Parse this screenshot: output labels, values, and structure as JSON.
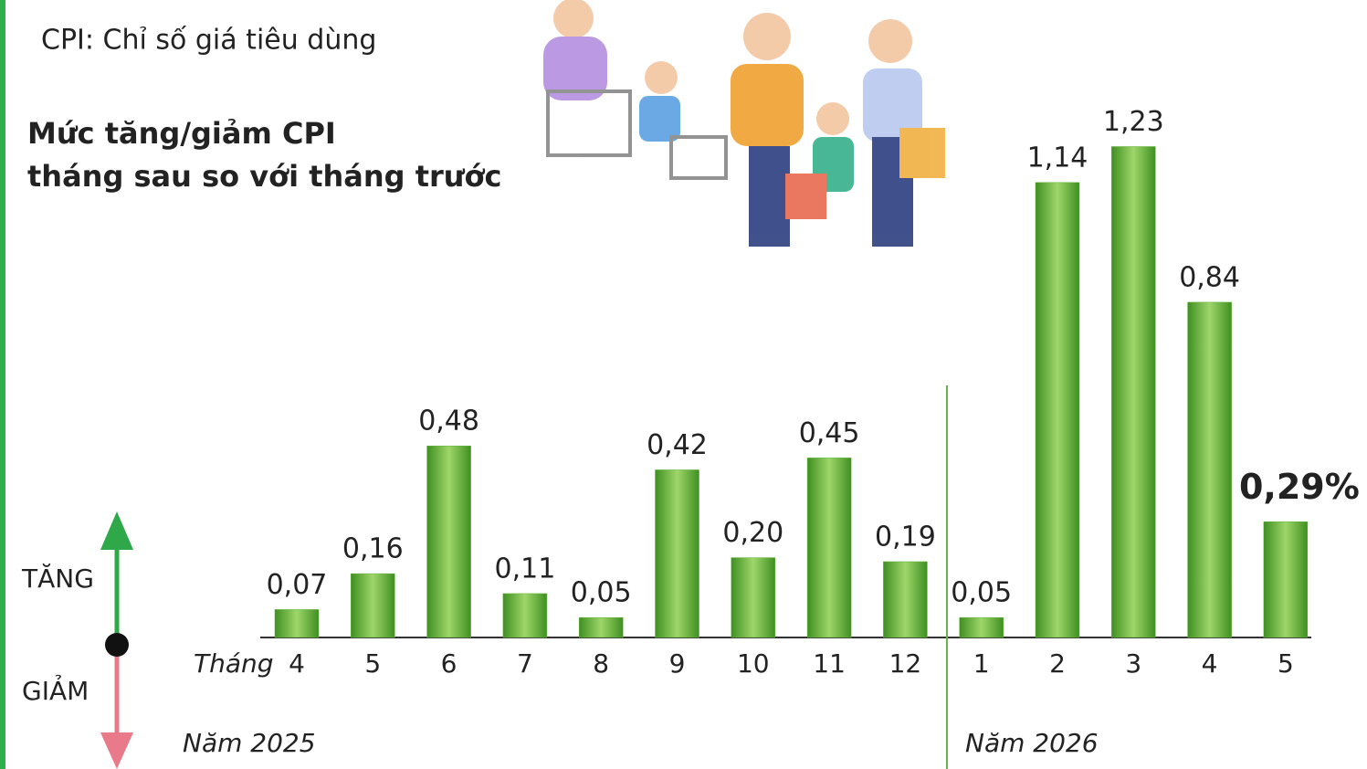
{
  "chart_data": {
    "type": "bar",
    "subtitle": "CPI: Chỉ số giá tiêu dùng",
    "title": [
      "Mức tăng/giảm CPI",
      "tháng sau so với tháng trước"
    ],
    "x_label": "Tháng",
    "groups": [
      "Năm 2025",
      "Năm 2026"
    ],
    "legend": {
      "up": "TĂNG",
      "down": "GIẢM"
    },
    "categories": [
      "4",
      "5",
      "6",
      "7",
      "8",
      "9",
      "10",
      "11",
      "12",
      "1",
      "2",
      "3",
      "4",
      "5"
    ],
    "values": [
      0.07,
      0.16,
      0.48,
      0.11,
      0.05,
      0.42,
      0.2,
      0.45,
      0.19,
      0.05,
      1.14,
      1.23,
      0.84,
      0.29
    ],
    "value_labels": [
      "0,07",
      "0,16",
      "0,48",
      "0,11",
      "0,05",
      "0,42",
      "0,20",
      "0,45",
      "0,19",
      "0,05",
      "1,14",
      "1,23",
      "0,84",
      "0,29%"
    ],
    "color": "#5fb33a"
  }
}
